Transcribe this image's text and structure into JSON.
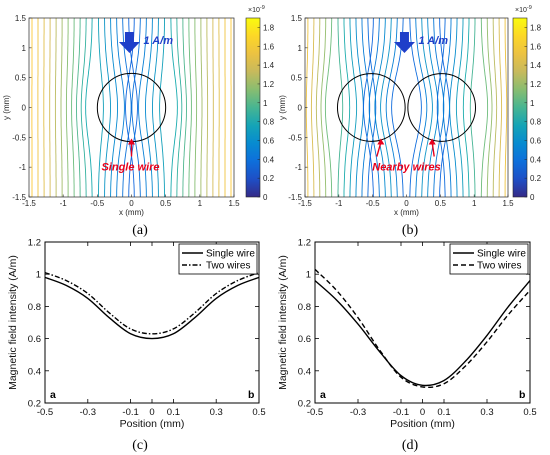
{
  "figure": {
    "captions": [
      "(a)",
      "(b)",
      "(c)",
      "(d)"
    ]
  },
  "colors": {
    "annotation_red": "#e8001c",
    "annotation_blue": "#1f3fc9",
    "wire_outline": "#000000",
    "line_black": "#000000"
  },
  "chart_data": [
    {
      "type": "contour",
      "panel": "a",
      "xlabel": "x (mm)",
      "ylabel": "y (mm)",
      "xlim": [
        -1.5,
        1.5
      ],
      "ylim": [
        -1.5,
        1.5
      ],
      "xticks": [
        "-1.5",
        "-1",
        "-0.5",
        "0",
        "0.5",
        "1",
        "1.5"
      ],
      "yticks": [
        "-1.5",
        "-1",
        "-0.5",
        "0",
        "0.5",
        "1",
        "1.5"
      ],
      "colorbar": {
        "exponent_label": "×10",
        "exponent_power": "-9",
        "ticks": [
          "0",
          "0.2",
          "0.4",
          "0.6",
          "0.8",
          "1",
          "1.2",
          "1.4",
          "1.6",
          "1.8"
        ],
        "range": [
          0,
          1.9
        ]
      },
      "wires": [
        {
          "cx": 0,
          "cy": 0,
          "r": 0.5
        }
      ],
      "field_arrow_label": "1 A/m",
      "pointer_label": "Single wire"
    },
    {
      "type": "contour",
      "panel": "b",
      "xlabel": "x (mm)",
      "ylabel": "y (mm)",
      "xlim": [
        -1.5,
        1.5
      ],
      "ylim": [
        -1.5,
        1.5
      ],
      "xticks": [
        "-1.5",
        "-1",
        "-0.5",
        "0",
        "0.5",
        "1",
        "1.5"
      ],
      "yticks": [
        "-1.5",
        "-1",
        "-0.5",
        "0",
        "0.5",
        "1",
        "1.5"
      ],
      "colorbar": {
        "exponent_label": "×10",
        "exponent_power": "-9",
        "ticks": [
          "0",
          "0.2",
          "0.4",
          "0.6",
          "0.8",
          "1",
          "1.2",
          "1.4",
          "1.6",
          "1.8"
        ],
        "range": [
          0,
          1.9
        ]
      },
      "wires": [
        {
          "cx": -0.52,
          "cy": 0,
          "r": 0.5
        },
        {
          "cx": 0.52,
          "cy": 0,
          "r": 0.5
        }
      ],
      "field_arrow_label": "1 A/m",
      "pointer_label": "Nearby wires"
    },
    {
      "type": "line",
      "panel": "c",
      "xlabel": "Position (mm)",
      "ylabel": "Magnetic field intensity (A/m)",
      "xlim": [
        -0.5,
        0.5
      ],
      "ylim": [
        0.2,
        1.2
      ],
      "xticks": [
        -0.5,
        -0.3,
        -0.1,
        0,
        0.1,
        0.3,
        0.5
      ],
      "xtick_labels": [
        "-0.5",
        "-0.3",
        "-0.1",
        "0",
        "0.1",
        "0.3",
        "0.5"
      ],
      "yticks": [
        0.2,
        0.4,
        0.6,
        0.8,
        1.0,
        1.2
      ],
      "ytick_labels": [
        "0.2",
        "0.4",
        "0.6",
        "0.8",
        "1",
        "1.2"
      ],
      "corner_labels": [
        "a",
        "b"
      ],
      "legend_position": "top-right",
      "series": [
        {
          "name": "Single wire",
          "style": "solid",
          "x": [
            -0.5,
            -0.4,
            -0.3,
            -0.2,
            -0.1,
            0,
            0.1,
            0.2,
            0.3,
            0.4,
            0.5
          ],
          "y": [
            0.98,
            0.93,
            0.85,
            0.73,
            0.63,
            0.6,
            0.63,
            0.73,
            0.85,
            0.93,
            0.98
          ]
        },
        {
          "name": "Two wires",
          "style": "dashdot",
          "x": [
            -0.5,
            -0.4,
            -0.3,
            -0.2,
            -0.1,
            0,
            0.1,
            0.2,
            0.3,
            0.4,
            0.5
          ],
          "y": [
            1.01,
            0.96,
            0.88,
            0.76,
            0.66,
            0.63,
            0.66,
            0.76,
            0.88,
            0.96,
            1.01
          ]
        }
      ]
    },
    {
      "type": "line",
      "panel": "d",
      "xlabel": "Position (mm)",
      "ylabel": "Magnetic field intensity (A/m)",
      "xlim": [
        -0.5,
        0.5
      ],
      "ylim": [
        0.2,
        1.2
      ],
      "xticks": [
        -0.5,
        -0.3,
        -0.1,
        0,
        0.1,
        0.3,
        0.5
      ],
      "xtick_labels": [
        "-0.5",
        "-0.3",
        "-0.1",
        "0",
        "0.1",
        "0.3",
        "0.5"
      ],
      "yticks": [
        0.2,
        0.4,
        0.6,
        0.8,
        1.0,
        1.2
      ],
      "ytick_labels": [
        "0.2",
        "0.4",
        "0.6",
        "0.8",
        "1",
        "1.2"
      ],
      "corner_labels": [
        "a",
        "b"
      ],
      "legend_position": "top-right",
      "series": [
        {
          "name": "Single wire",
          "style": "solid",
          "x": [
            -0.5,
            -0.4,
            -0.3,
            -0.2,
            -0.1,
            0,
            0.1,
            0.2,
            0.3,
            0.4,
            0.5
          ],
          "y": [
            0.96,
            0.84,
            0.69,
            0.52,
            0.37,
            0.31,
            0.34,
            0.46,
            0.62,
            0.8,
            0.96
          ]
        },
        {
          "name": "Two wires",
          "style": "dashed",
          "x": [
            -0.5,
            -0.4,
            -0.3,
            -0.2,
            -0.1,
            0,
            0.1,
            0.2,
            0.3,
            0.4,
            0.5
          ],
          "y": [
            1.03,
            0.9,
            0.73,
            0.53,
            0.36,
            0.3,
            0.32,
            0.43,
            0.58,
            0.75,
            0.9
          ]
        }
      ]
    }
  ]
}
